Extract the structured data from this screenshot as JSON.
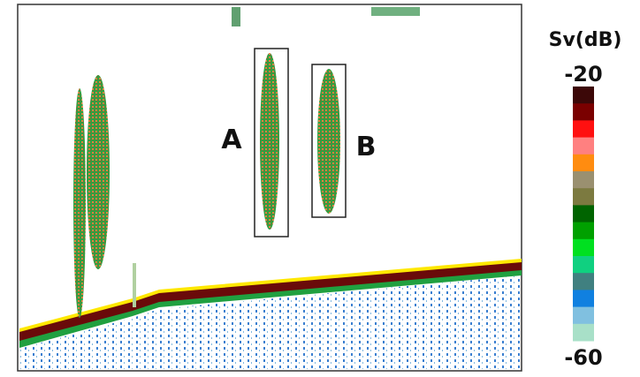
{
  "echogram": {
    "targets": [
      {
        "label": "A"
      },
      {
        "label": "B"
      }
    ],
    "colorbar": {
      "title": "Sv(dB)",
      "max": -20,
      "min": -60,
      "colors": [
        "#3c0808",
        "#7a0000",
        "#ff1010",
        "#ff8080",
        "#ff8c10",
        "#9a9070",
        "#7c7a40",
        "#006400",
        "#00a000",
        "#00e020",
        "#10d080",
        "#408080",
        "#1080e0",
        "#80c0e0",
        "#a8e0c8"
      ]
    }
  }
}
